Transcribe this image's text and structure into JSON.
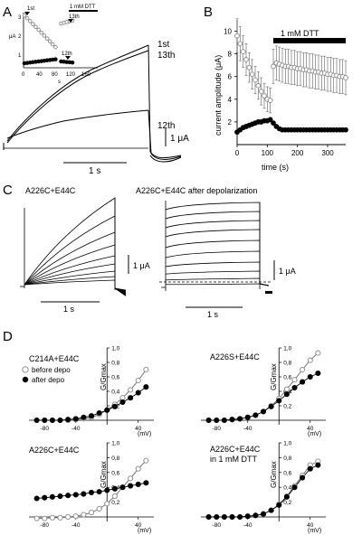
{
  "panel_labels": {
    "a": "A",
    "b": "B",
    "c": "C",
    "d": "D"
  },
  "panel_a": {
    "inset_ylabel": "μA",
    "inset_xlabel": "s",
    "inset_xticks": [
      "0",
      "40",
      "80",
      "120",
      "160"
    ],
    "inset_yticks": [
      "3",
      "2",
      "1"
    ],
    "marker_1st": "1st",
    "marker_13th": "13th",
    "marker_12th": "12th",
    "dtt_label": "1 mM DTT",
    "trace_1st": "1st",
    "trace_13th": "13th",
    "trace_12th": "12th",
    "scale_y": "1 μA",
    "scale_x": "1 s"
  },
  "panel_c": {
    "left_title": "A226C+E44C",
    "right_title": "A226C+E44C after depolarization",
    "scale_y_left": "1 μA",
    "scale_x_left": "1 s",
    "scale_y_right": "1 μA",
    "scale_x_right": "1 s"
  },
  "chart_data": [
    {
      "type": "scatter",
      "panel": "B",
      "ylabel": "current amplitude (μA)",
      "xlabel": "time (s)",
      "xlim": [
        0,
        360
      ],
      "ylim": [
        0,
        11
      ],
      "xticks": [
        "0",
        "100",
        "200",
        "300"
      ],
      "yticks": [
        "2",
        "4",
        "6",
        "8",
        "10"
      ],
      "annotation": "1 mM DTT",
      "dtt_range": [
        120,
        360
      ],
      "series": [
        {
          "marker": "open",
          "x": [
            0,
            10,
            20,
            30,
            40,
            50,
            60,
            70,
            80,
            90,
            100,
            110
          ],
          "y": [
            9.6,
            8.9,
            8.2,
            7.5,
            6.8,
            6.2,
            5.7,
            5.2,
            4.7,
            4.3,
            4.0,
            3.9
          ],
          "err": [
            1.5,
            1.5,
            1.4,
            1.4,
            1.3,
            1.3,
            1.2,
            1.2,
            1.2,
            1.1,
            1.1,
            1.1
          ]
        },
        {
          "marker": "filled",
          "x": [
            0,
            10,
            20,
            30,
            40,
            50,
            60,
            70,
            80,
            90,
            100,
            110
          ],
          "y": [
            1.1,
            1.3,
            1.5,
            1.6,
            1.7,
            1.8,
            1.9,
            2.0,
            2.0,
            2.1,
            2.1,
            2.2
          ],
          "err": [
            0.15,
            0.15,
            0.2,
            0.2,
            0.2,
            0.2,
            0.2,
            0.2,
            0.2,
            0.2,
            0.2,
            0.2
          ]
        },
        {
          "marker": "open",
          "x": [
            120,
            130,
            140,
            150,
            160,
            170,
            180,
            190,
            200,
            210,
            220,
            230,
            240,
            250,
            260,
            270,
            280,
            290,
            300,
            310,
            320,
            330,
            340,
            350,
            360
          ],
          "y": [
            6.9,
            7.2,
            7.1,
            7.0,
            6.9,
            6.9,
            6.8,
            6.8,
            6.7,
            6.7,
            6.6,
            6.6,
            6.5,
            6.5,
            6.4,
            6.4,
            6.3,
            6.3,
            6.2,
            6.2,
            6.1,
            6.1,
            6.0,
            6.0,
            5.9
          ],
          "err": [
            1.5,
            1.5,
            1.5,
            1.5,
            1.5,
            1.5,
            1.5,
            1.5,
            1.5,
            1.5,
            1.5,
            1.5,
            1.5,
            1.5,
            1.5,
            1.5,
            1.5,
            1.5,
            1.5,
            1.5,
            1.5,
            1.5,
            1.5,
            1.5,
            1.5
          ]
        },
        {
          "marker": "filled",
          "x": [
            120,
            130,
            140,
            150,
            160,
            170,
            180,
            190,
            200,
            210,
            220,
            230,
            240,
            250,
            260,
            270,
            280,
            290,
            300,
            310,
            320,
            330,
            340,
            350,
            360
          ],
          "y": [
            1.9,
            1.6,
            1.4,
            1.3,
            1.3,
            1.3,
            1.3,
            1.3,
            1.3,
            1.3,
            1.3,
            1.3,
            1.3,
            1.3,
            1.3,
            1.3,
            1.3,
            1.3,
            1.3,
            1.3,
            1.3,
            1.3,
            1.3,
            1.3,
            1.3
          ],
          "err": [
            0.2,
            0.15,
            0.1,
            0.1,
            0.1,
            0.1,
            0.1,
            0.1,
            0.1,
            0.1,
            0.1,
            0.1,
            0.1,
            0.1,
            0.1,
            0.1,
            0.1,
            0.1,
            0.1,
            0.1,
            0.1,
            0.1,
            0.1,
            0.1,
            0.1
          ]
        }
      ]
    },
    {
      "type": "scatter",
      "panel": "D1",
      "title": "C214A+E44C",
      "ylabel": "G/Gmax",
      "xlabel": "(mV)",
      "xticks": [
        "-80",
        "-40",
        "40"
      ],
      "yticks": [
        "0,2",
        "0,4",
        "0,6",
        "0,8",
        "1,0"
      ],
      "legend": [
        "before depo",
        "after depo"
      ],
      "x": [
        -90,
        -80,
        -70,
        -60,
        -50,
        -40,
        -30,
        -20,
        -10,
        0,
        10,
        20,
        30,
        40,
        50
      ],
      "series": [
        {
          "name": "before depo",
          "marker": "open",
          "values": [
            0.0,
            0.0,
            0.0,
            0.0,
            0.0,
            0.01,
            0.02,
            0.04,
            0.08,
            0.14,
            0.22,
            0.31,
            0.42,
            0.55,
            0.7
          ]
        },
        {
          "name": "after depo",
          "marker": "filled",
          "values": [
            0.0,
            0.0,
            0.0,
            0.0,
            0.01,
            0.02,
            0.04,
            0.06,
            0.1,
            0.14,
            0.19,
            0.25,
            0.31,
            0.38,
            0.46
          ]
        }
      ]
    },
    {
      "type": "scatter",
      "panel": "D2",
      "title": "A226S+E44C",
      "ylabel": "G/Gmax",
      "xlabel": "(mV)",
      "xticks": [
        "-80",
        "-40",
        "40"
      ],
      "yticks": [
        "0,2",
        "0,4",
        "0,6",
        "0,8",
        "1,0"
      ],
      "x": [
        -90,
        -80,
        -70,
        -60,
        -50,
        -40,
        -30,
        -20,
        -10,
        0,
        10,
        20,
        30,
        40,
        50
      ],
      "series": [
        {
          "marker": "open",
          "values": [
            0.0,
            0.0,
            0.0,
            0.01,
            0.02,
            0.04,
            0.07,
            0.12,
            0.2,
            0.3,
            0.43,
            0.56,
            0.7,
            0.83,
            0.93
          ]
        },
        {
          "marker": "filled",
          "values": [
            0.0,
            0.0,
            0.0,
            0.01,
            0.02,
            0.04,
            0.07,
            0.12,
            0.19,
            0.27,
            0.36,
            0.45,
            0.53,
            0.6,
            0.65
          ]
        }
      ]
    },
    {
      "type": "scatter",
      "panel": "D3",
      "title": "A226C+E44C",
      "ylabel": "G/Gmax",
      "xlabel": "(mV)",
      "xticks": [
        "-80",
        "-40",
        "40"
      ],
      "yticks": [
        "0,2",
        "0,4",
        "0,6",
        "0,8",
        "1,0"
      ],
      "x": [
        -90,
        -80,
        -70,
        -60,
        -50,
        -40,
        -30,
        -20,
        -10,
        0,
        10,
        20,
        30,
        40,
        50
      ],
      "series": [
        {
          "marker": "open",
          "values": [
            -0.02,
            -0.02,
            -0.01,
            -0.01,
            0.0,
            0.01,
            0.03,
            0.06,
            0.11,
            0.18,
            0.28,
            0.4,
            0.52,
            0.65,
            0.76
          ]
        },
        {
          "marker": "filled",
          "values": [
            0.25,
            0.26,
            0.27,
            0.28,
            0.29,
            0.3,
            0.31,
            0.33,
            0.34,
            0.36,
            0.38,
            0.4,
            0.42,
            0.44,
            0.46
          ]
        }
      ]
    },
    {
      "type": "scatter",
      "panel": "D4",
      "title": "A226C+E44C",
      "subtitle": "in 1 mM DTT",
      "ylabel": "G/Gmax",
      "xlabel": "(mV)",
      "xticks": [
        "-80",
        "-40",
        "40"
      ],
      "yticks": [
        "0,2",
        "0,4",
        "0,6",
        "0,8",
        "1,0"
      ],
      "x": [
        -90,
        -80,
        -70,
        -60,
        -50,
        -40,
        -30,
        -20,
        -10,
        0,
        10,
        20,
        30,
        40,
        50
      ],
      "series": [
        {
          "marker": "open",
          "values": [
            0.0,
            0.0,
            0.0,
            0.0,
            0.0,
            0.01,
            0.02,
            0.04,
            0.09,
            0.17,
            0.28,
            0.42,
            0.56,
            0.7,
            0.75
          ]
        },
        {
          "marker": "filled",
          "values": [
            0.0,
            0.0,
            0.0,
            0.0,
            0.0,
            0.01,
            0.02,
            0.04,
            0.09,
            0.16,
            0.27,
            0.4,
            0.53,
            0.65,
            0.7
          ]
        }
      ]
    }
  ]
}
